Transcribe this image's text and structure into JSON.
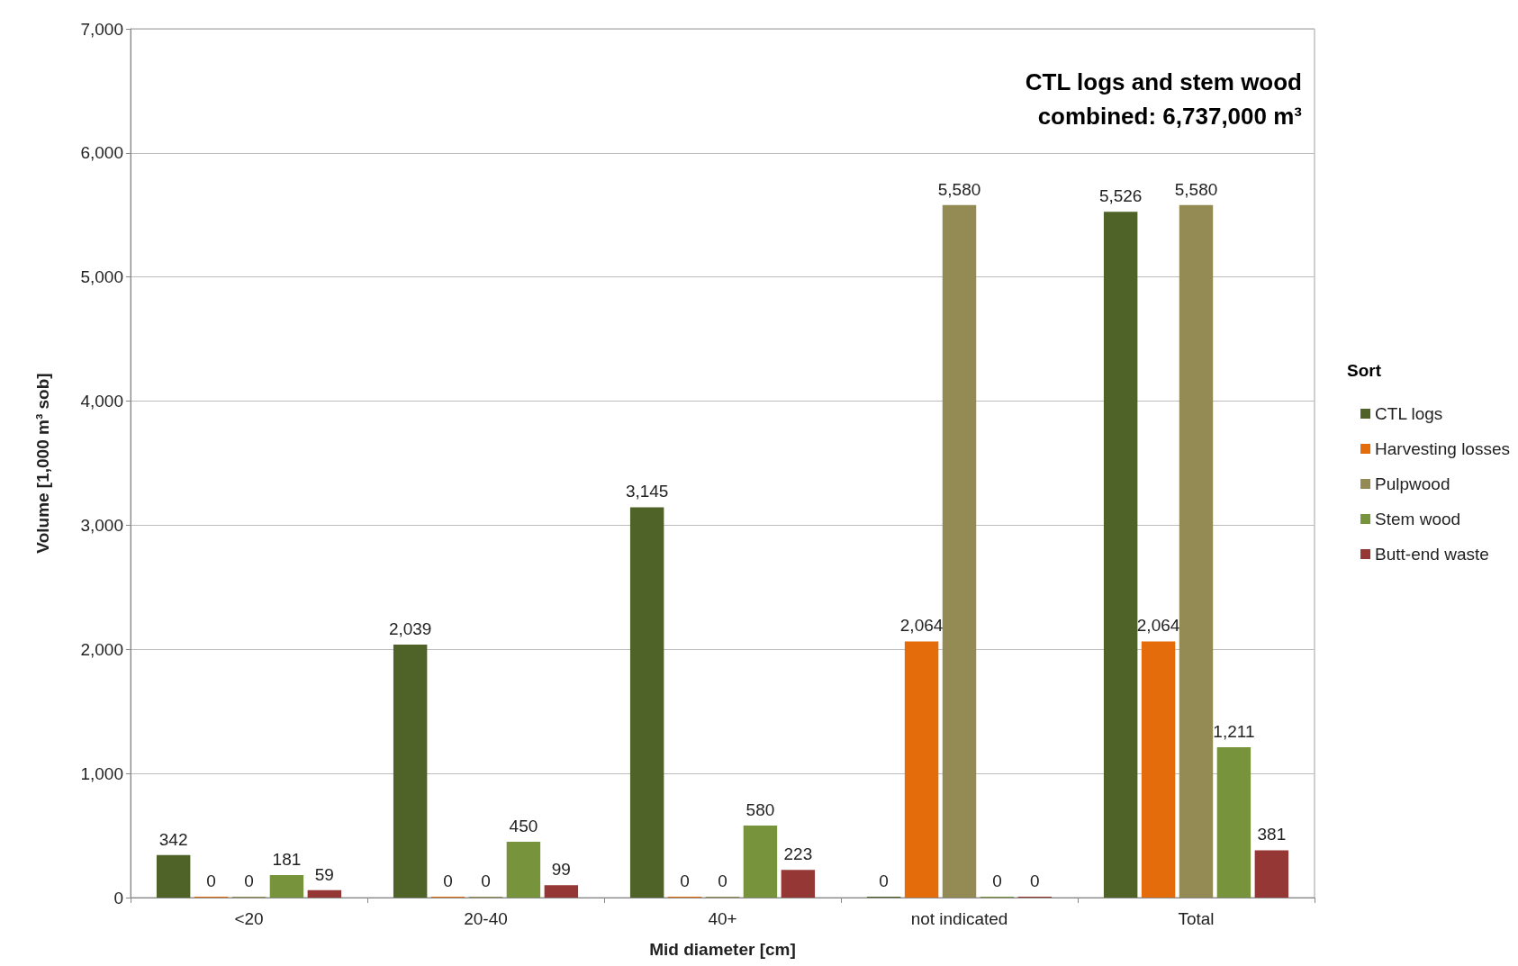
{
  "chart_data": {
    "type": "bar",
    "xlabel": "Mid diameter [cm]",
    "ylabel": "Volume [1,000 m³ sob]",
    "legend_title": "Sort",
    "annotations": [
      "CTL logs and stem wood\ncombined: 6,737,000 m³"
    ],
    "categories": [
      "<20",
      "20-40",
      "40+",
      "not indicated",
      "Total"
    ],
    "series": [
      {
        "name": "CTL logs",
        "color": "#4f6228",
        "values": [
          342,
          2039,
          3145,
          0,
          5526
        ],
        "value_labels": [
          "342",
          "2,039",
          "3,145",
          "0",
          "5,526"
        ]
      },
      {
        "name": "Harvesting losses",
        "color": "#e46c0a",
        "values": [
          0,
          0,
          0,
          2064,
          2064
        ],
        "value_labels": [
          "0",
          "0",
          "0",
          "2,064",
          "2,064"
        ]
      },
      {
        "name": "Pulpwood",
        "color": "#948a54",
        "values": [
          0,
          0,
          0,
          5580,
          5580
        ],
        "value_labels": [
          "0",
          "0",
          "0",
          "5,580",
          "5,580"
        ]
      },
      {
        "name": "Stem wood",
        "color": "#77933c",
        "values": [
          181,
          450,
          580,
          0,
          1211
        ],
        "value_labels": [
          "181",
          "450",
          "580",
          "0",
          "1,211"
        ]
      },
      {
        "name": "Butt-end waste",
        "color": "#953735",
        "values": [
          59,
          99,
          223,
          0,
          381
        ],
        "value_labels": [
          "59",
          "99",
          "223",
          "0",
          "381"
        ]
      }
    ],
    "ylim": [
      0,
      7000
    ],
    "yticks": [
      0,
      {
        "value": 1000,
        "label": "1,000"
      },
      {
        "value": 2000,
        "label": "2,000"
      },
      {
        "value": 3000,
        "label": "3,000"
      },
      {
        "value": 4000,
        "label": "4,000"
      },
      {
        "value": 5000,
        "label": "5,000"
      },
      {
        "value": 6000,
        "label": "6,000"
      },
      {
        "value": 7000,
        "label": "7,000"
      }
    ],
    "grid": "y",
    "legend": "right"
  }
}
